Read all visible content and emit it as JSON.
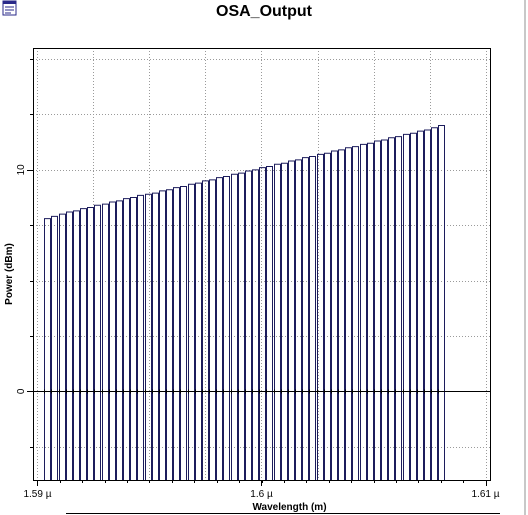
{
  "window": {
    "title": "OSA_Output",
    "icon": "chart-window-icon"
  },
  "chart_data": {
    "type": "bar",
    "title": "OSA_Output",
    "xlabel": "Wavelength (m)",
    "ylabel": "Power (dBm)",
    "xlim": [
      1.5898e-06,
      1.6102e-06
    ],
    "ylim": [
      -4,
      15.5
    ],
    "xticks": [
      {
        "value": 1.59e-06,
        "label": "1.59 µ"
      },
      {
        "value": 1.6e-06,
        "label": "1.6 µ"
      },
      {
        "value": 1.61e-06,
        "label": "1.61 µ"
      }
    ],
    "yticks": [
      {
        "value": 0,
        "label": "0"
      },
      {
        "value": 10,
        "label": "10"
      }
    ],
    "grid": true,
    "channel_start": 1.5903e-06,
    "channel_spacing": 3.2e-10,
    "values": [
      7.8,
      7.9,
      8.0,
      8.1,
      8.15,
      8.25,
      8.3,
      8.4,
      8.45,
      8.55,
      8.6,
      8.7,
      8.75,
      8.85,
      8.9,
      8.95,
      9.05,
      9.1,
      9.2,
      9.25,
      9.35,
      9.4,
      9.5,
      9.55,
      9.65,
      9.7,
      9.8,
      9.85,
      9.95,
      10.0,
      10.1,
      10.15,
      10.25,
      10.3,
      10.4,
      10.45,
      10.55,
      10.6,
      10.7,
      10.75,
      10.85,
      10.9,
      11.0,
      11.05,
      11.15,
      11.2,
      11.3,
      11.35,
      11.45,
      11.5,
      11.6,
      11.65,
      11.75,
      11.8,
      11.9,
      12.0
    ],
    "baseline": -4,
    "bar_color": "#1c1c5c"
  }
}
